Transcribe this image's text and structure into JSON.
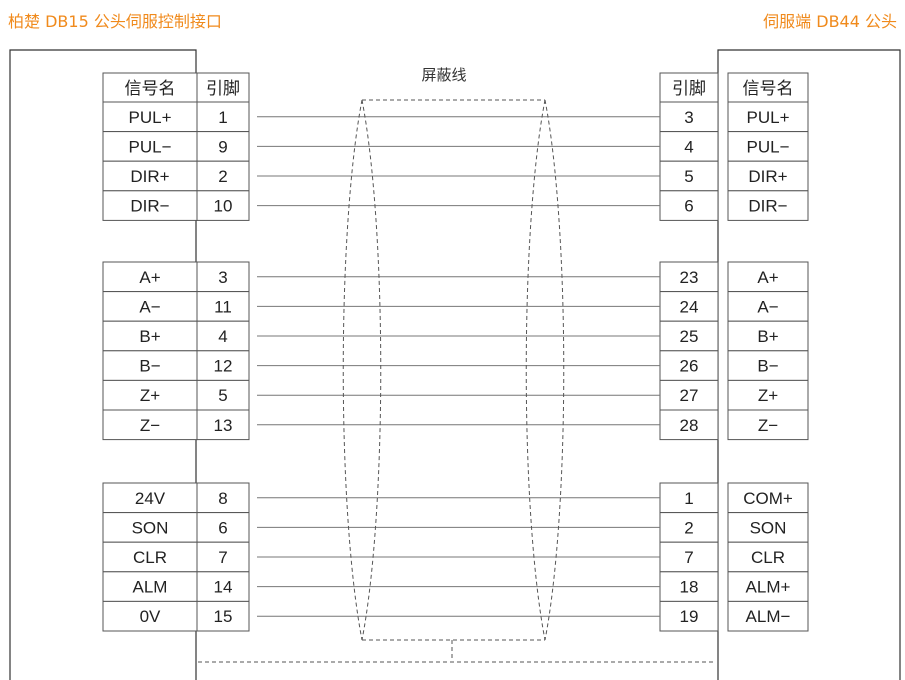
{
  "left_header": "柏楚 DB15 公头伺服控制接口",
  "right_header": "伺服端 DB44 公头",
  "shield_label": "屏蔽线",
  "left_columns": {
    "signal": "信号名",
    "pin": "引脚"
  },
  "right_columns": {
    "pin": "引脚",
    "signal": "信号名"
  },
  "groups": [
    {
      "rows": [
        {
          "left_signal": "PUL+",
          "left_pin": "1",
          "right_pin": "3",
          "right_signal": "PUL+"
        },
        {
          "left_signal": "PUL−",
          "left_pin": "9",
          "right_pin": "4",
          "right_signal": "PUL−"
        },
        {
          "left_signal": "DIR+",
          "left_pin": "2",
          "right_pin": "5",
          "right_signal": "DIR+"
        },
        {
          "left_signal": "DIR−",
          "left_pin": "10",
          "right_pin": "6",
          "right_signal": "DIR−"
        }
      ]
    },
    {
      "rows": [
        {
          "left_signal": "A+",
          "left_pin": "3",
          "right_pin": "23",
          "right_signal": "A+"
        },
        {
          "left_signal": "A−",
          "left_pin": "11",
          "right_pin": "24",
          "right_signal": "A−"
        },
        {
          "left_signal": "B+",
          "left_pin": "4",
          "right_pin": "25",
          "right_signal": "B+"
        },
        {
          "left_signal": "B−",
          "left_pin": "12",
          "right_pin": "26",
          "right_signal": "B−"
        },
        {
          "left_signal": "Z+",
          "left_pin": "5",
          "right_pin": "27",
          "right_signal": "Z+"
        },
        {
          "left_signal": "Z−",
          "left_pin": "13",
          "right_pin": "28",
          "right_signal": "Z−"
        }
      ]
    },
    {
      "rows": [
        {
          "left_signal": "24V",
          "left_pin": "8",
          "right_pin": "1",
          "right_signal": "COM+"
        },
        {
          "left_signal": "SON",
          "left_pin": "6",
          "right_pin": "2",
          "right_signal": "SON"
        },
        {
          "left_signal": "CLR",
          "left_pin": "7",
          "right_pin": "7",
          "right_signal": "CLR"
        },
        {
          "left_signal": "ALM",
          "left_pin": "14",
          "right_pin": "18",
          "right_signal": "ALM+"
        },
        {
          "left_signal": "0V",
          "left_pin": "15",
          "right_pin": "19",
          "right_signal": "ALM−"
        }
      ]
    }
  ],
  "colors": {
    "header": "#f08a1c",
    "line": "#555555",
    "text": "#222222"
  }
}
